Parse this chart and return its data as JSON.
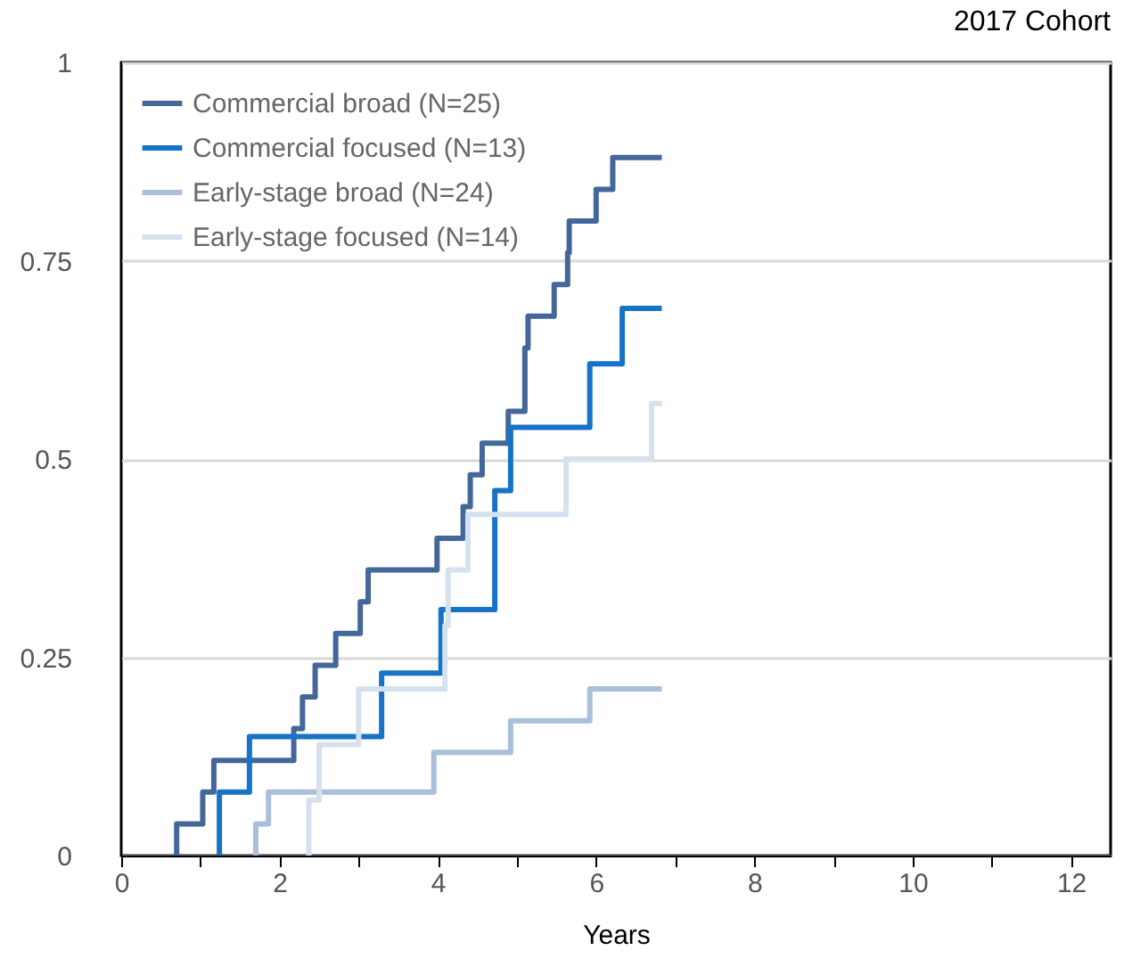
{
  "chart_data": {
    "type": "step",
    "title": "2017 Cohort",
    "xlabel": "Years",
    "xlim": [
      0,
      12.5
    ],
    "xticks": [
      0,
      {
        "value": 1,
        "label": null
      },
      2,
      {
        "value": 3,
        "label": null
      },
      4,
      {
        "value": 5,
        "label": null
      },
      6,
      {
        "value": 7,
        "label": null
      },
      8,
      {
        "value": 9,
        "label": null
      },
      10,
      {
        "value": 11,
        "label": null
      },
      12
    ],
    "ylim": [
      0,
      1
    ],
    "yticks": [
      0,
      0.25,
      0.5,
      0.75,
      1
    ],
    "grid": "y",
    "legend": "top left",
    "series": [
      {
        "name": "Commercial broad (N=25)",
        "color": "#44679a",
        "x": [
          0.7,
          0.7,
          1.03,
          1.17,
          2.18,
          2.29,
          2.45,
          2.71,
          3.02,
          3.12,
          3.99,
          4.32,
          4.41,
          4.56,
          4.89,
          5.1,
          5.14,
          5.47,
          5.64,
          5.66,
          6.0,
          6.21,
          6.83
        ],
        "values": [
          0,
          0.04,
          0.08,
          0.12,
          0.16,
          0.2,
          0.24,
          0.28,
          0.32,
          0.36,
          0.4,
          0.44,
          0.48,
          0.52,
          0.56,
          0.64,
          0.68,
          0.72,
          0.76,
          0.8,
          0.84,
          0.88,
          0.88
        ]
      },
      {
        "name": "Commercial focused (N=13)",
        "color": "#1673c5",
        "x": [
          1.24,
          1.24,
          1.62,
          3.29,
          4.04,
          4.72,
          4.92,
          5.92,
          6.33,
          6.83
        ],
        "values": [
          0,
          0.08,
          0.15,
          0.23,
          0.31,
          0.46,
          0.54,
          0.62,
          0.69,
          0.69
        ]
      },
      {
        "name": "Early-stage broad (N=24)",
        "color": "#a9bfdc",
        "x": [
          1.7,
          1.7,
          1.86,
          3.95,
          4.92,
          5.92,
          6.83
        ],
        "values": [
          0,
          0.04,
          0.08,
          0.13,
          0.17,
          0.21,
          0.21
        ]
      },
      {
        "name": "Early-stage focused (N=14)",
        "color": "#d6e1ef",
        "x": [
          2.37,
          2.37,
          2.5,
          3.0,
          4.09,
          4.13,
          4.38,
          5.62,
          6.7,
          6.83
        ],
        "values": [
          0,
          0.07,
          0.14,
          0.21,
          0.29,
          0.36,
          0.43,
          0.5,
          0.57,
          0.57
        ]
      }
    ]
  }
}
